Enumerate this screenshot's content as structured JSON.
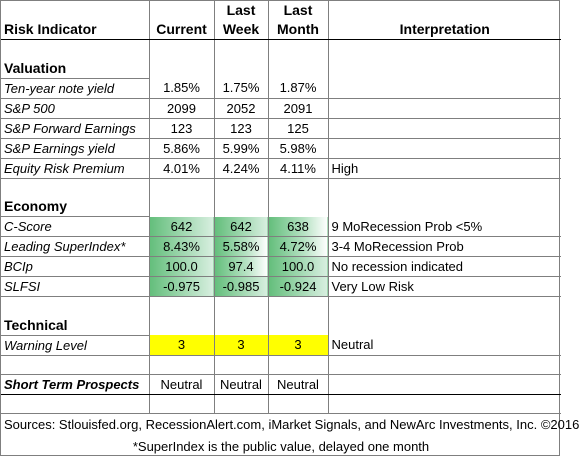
{
  "header": {
    "risk_indicator": "Risk Indicator",
    "current": "Current",
    "last_week_1": "Last",
    "last_week_2": "Week",
    "last_month_1": "Last",
    "last_month_2": "Month",
    "interpretation": "Interpretation"
  },
  "sections": {
    "valuation": "Valuation",
    "economy": "Economy",
    "technical": "Technical"
  },
  "valuation_rows": [
    {
      "name": "Ten-year note yield",
      "current": "1.85%",
      "week": "1.75%",
      "month": "1.87%",
      "interp": ""
    },
    {
      "name": "S&P 500",
      "current": "2099",
      "week": "2052",
      "month": "2091",
      "interp": ""
    },
    {
      "name": "S&P Forward Earnings",
      "current": "123",
      "week": "123",
      "month": "125",
      "interp": ""
    },
    {
      "name": "S&P Earnings yield",
      "current": "5.86%",
      "week": "5.99%",
      "month": "5.98%",
      "interp": ""
    },
    {
      "name": "Equity Risk Premium",
      "current": "4.01%",
      "week": "4.24%",
      "month": "4.11%",
      "interp": "High"
    }
  ],
  "economy_rows": [
    {
      "name": "C-Score",
      "current": "642",
      "week": "642",
      "month": "638",
      "interp": "9 MoRecession Prob <5%"
    },
    {
      "name": "Leading SuperIndex*",
      "current": "8.43%",
      "week": "5.58%",
      "month": "4.72%",
      "interp": "3-4 MoRecession Prob"
    },
    {
      "name": "BCIp",
      "current": "100.0",
      "week": "97.4",
      "month": "100.0",
      "interp": "No recession indicated"
    },
    {
      "name": "SLFSI",
      "current": "-0.975",
      "week": "-0.985",
      "month": "-0.924",
      "interp": "Very Low Risk"
    }
  ],
  "technical_row": {
    "name": "Warning Level",
    "current": "3",
    "week": "3",
    "month": "3",
    "interp": "Neutral"
  },
  "prospects_row": {
    "name": "Short Term Prospects",
    "current": "Neutral",
    "week": "Neutral",
    "month": "Neutral",
    "interp": ""
  },
  "footer": {
    "sources": "Sources: Stlouisfed.org, RecessionAlert.com, iMarket Signals, and NewArc Investments, Inc. ©2016",
    "note": "*SuperIndex is the public value, delayed one month"
  },
  "colors": {
    "green_scale": "#63be7b",
    "warning_yellow": "#ffff00",
    "grid_line": "#7f7f7f"
  }
}
